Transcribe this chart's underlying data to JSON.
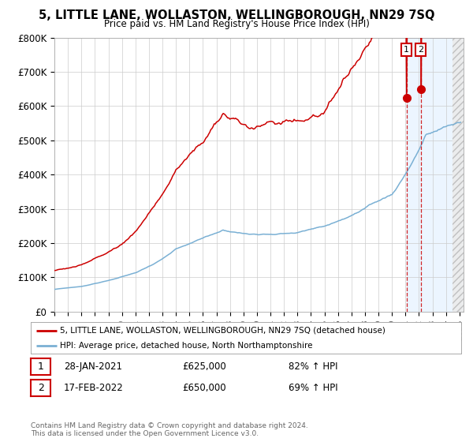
{
  "title": "5, LITTLE LANE, WOLLASTON, WELLINGBOROUGH, NN29 7SQ",
  "subtitle": "Price paid vs. HM Land Registry's House Price Index (HPI)",
  "legend_line1": "5, LITTLE LANE, WOLLASTON, WELLINGBOROUGH, NN29 7SQ (detached house)",
  "legend_line2": "HPI: Average price, detached house, North Northamptonshire",
  "purchase1_label": "1",
  "purchase1_date": "28-JAN-2021",
  "purchase1_price": 625000,
  "purchase1_hpi": "82% ↑ HPI",
  "purchase1_year": 2021.08,
  "purchase2_label": "2",
  "purchase2_date": "17-FEB-2022",
  "purchase2_price": 650000,
  "purchase2_hpi": "69% ↑ HPI",
  "purchase2_year": 2022.13,
  "footnote": "Contains HM Land Registry data © Crown copyright and database right 2024.\nThis data is licensed under the Open Government Licence v3.0.",
  "ylim": [
    0,
    800000
  ],
  "xlim_start": 1995,
  "xlim_end": 2025,
  "line1_color": "#cc0000",
  "line2_color": "#7ab0d4",
  "marker_color": "#cc0000",
  "vline_color": "#cc0000",
  "shade_color": "#ddeeff",
  "grid_color": "#cccccc",
  "background_color": "#ffffff"
}
